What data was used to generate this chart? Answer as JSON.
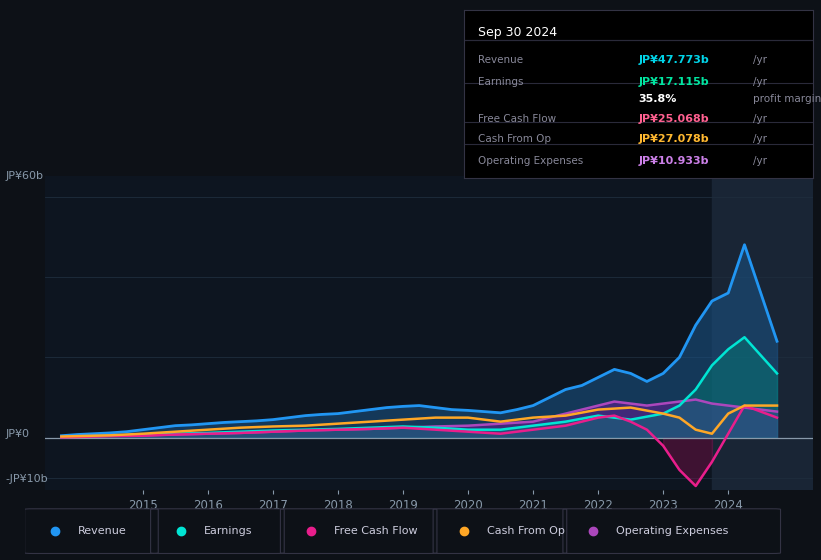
{
  "bg_color": "#0d1117",
  "plot_bg_color": "#0d1520",
  "grid_color": "#1e2d3d",
  "title_label": "Sep 30 2024",
  "ylim": [
    -13,
    65
  ],
  "xlim_start": 2013.5,
  "xlim_end": 2025.3,
  "xticks": [
    2015,
    2016,
    2017,
    2018,
    2019,
    2020,
    2021,
    2022,
    2023,
    2024
  ],
  "highlight_x_start": 2023.75,
  "highlight_x_end": 2025.3,
  "info_rows": [
    {
      "label": "Revenue",
      "value": "JP¥47.773b",
      "suffix": " /yr",
      "value_color": "#00d4e8"
    },
    {
      "label": "Earnings",
      "value": "JP¥17.115b",
      "suffix": " /yr",
      "value_color": "#00e5a0"
    },
    {
      "label": "",
      "value": "35.8%",
      "suffix": " profit margin",
      "value_color": "#ffffff"
    },
    {
      "label": "Free Cash Flow",
      "value": "JP¥25.068b",
      "suffix": " /yr",
      "value_color": "#ff6090"
    },
    {
      "label": "Cash From Op",
      "value": "JP¥27.078b",
      "suffix": " /yr",
      "value_color": "#ffb830"
    },
    {
      "label": "Operating Expenses",
      "value": "JP¥10.933b",
      "suffix": " /yr",
      "value_color": "#cc80e8"
    }
  ],
  "series": {
    "Revenue": {
      "color": "#2196f3",
      "fill_color": "#1a5080",
      "fill_alpha": 0.6,
      "linewidth": 2.0,
      "x": [
        2013.75,
        2014.0,
        2014.25,
        2014.5,
        2014.75,
        2015.0,
        2015.25,
        2015.5,
        2015.75,
        2016.0,
        2016.25,
        2016.5,
        2016.75,
        2017.0,
        2017.25,
        2017.5,
        2017.75,
        2018.0,
        2018.25,
        2018.5,
        2018.75,
        2019.0,
        2019.25,
        2019.5,
        2019.75,
        2020.0,
        2020.25,
        2020.5,
        2020.75,
        2021.0,
        2021.25,
        2021.5,
        2021.75,
        2022.0,
        2022.25,
        2022.5,
        2022.75,
        2023.0,
        2023.25,
        2023.5,
        2023.75,
        2024.0,
        2024.25,
        2024.75
      ],
      "y": [
        0.5,
        0.8,
        1.0,
        1.2,
        1.5,
        2.0,
        2.5,
        3.0,
        3.2,
        3.5,
        3.8,
        4.0,
        4.2,
        4.5,
        5.0,
        5.5,
        5.8,
        6.0,
        6.5,
        7.0,
        7.5,
        7.8,
        8.0,
        7.5,
        7.0,
        6.8,
        6.5,
        6.2,
        7.0,
        8.0,
        10.0,
        12.0,
        13.0,
        15.0,
        17.0,
        16.0,
        14.0,
        16.0,
        20.0,
        28.0,
        34.0,
        36.0,
        48.0,
        24.0
      ]
    },
    "Earnings": {
      "color": "#00e5d4",
      "fill_color": "#00897b",
      "fill_alpha": 0.4,
      "linewidth": 1.8,
      "x": [
        2013.75,
        2014.0,
        2014.5,
        2015.0,
        2015.5,
        2016.0,
        2016.5,
        2017.0,
        2017.5,
        2018.0,
        2018.5,
        2019.0,
        2019.5,
        2020.0,
        2020.5,
        2021.0,
        2021.5,
        2022.0,
        2022.5,
        2023.0,
        2023.25,
        2023.5,
        2023.75,
        2024.0,
        2024.25,
        2024.75
      ],
      "y": [
        0.2,
        0.3,
        0.5,
        0.8,
        1.0,
        1.2,
        1.5,
        1.8,
        2.0,
        2.2,
        2.5,
        2.8,
        2.5,
        2.0,
        2.0,
        3.0,
        4.0,
        5.5,
        4.5,
        6.0,
        8.0,
        12.0,
        18.0,
        22.0,
        25.0,
        16.0
      ]
    },
    "FreeCashFlow": {
      "color": "#e91e8c",
      "fill_color": "#880e4f",
      "fill_alpha": 0.4,
      "linewidth": 1.8,
      "x": [
        2013.75,
        2014.0,
        2014.5,
        2015.0,
        2015.5,
        2016.0,
        2016.5,
        2017.0,
        2017.5,
        2018.0,
        2018.5,
        2019.0,
        2019.5,
        2020.0,
        2020.5,
        2021.0,
        2021.5,
        2022.0,
        2022.25,
        2022.5,
        2022.75,
        2023.0,
        2023.25,
        2023.5,
        2023.75,
        2024.0,
        2024.25,
        2024.75
      ],
      "y": [
        0.1,
        0.2,
        0.4,
        0.5,
        0.8,
        1.0,
        1.2,
        1.5,
        1.8,
        2.0,
        2.2,
        2.5,
        2.0,
        1.5,
        1.0,
        2.0,
        3.0,
        5.0,
        5.5,
        4.0,
        2.0,
        -2.0,
        -8.0,
        -12.0,
        -6.0,
        1.0,
        8.0,
        5.0
      ]
    },
    "CashFromOp": {
      "color": "#ffa726",
      "fill_color": "#e65100",
      "fill_alpha": 0.3,
      "linewidth": 1.8,
      "x": [
        2013.75,
        2014.0,
        2014.5,
        2015.0,
        2015.5,
        2016.0,
        2016.5,
        2017.0,
        2017.5,
        2018.0,
        2018.5,
        2019.0,
        2019.5,
        2020.0,
        2020.5,
        2021.0,
        2021.5,
        2022.0,
        2022.5,
        2023.0,
        2023.25,
        2023.5,
        2023.75,
        2024.0,
        2024.25,
        2024.75
      ],
      "y": [
        0.3,
        0.4,
        0.6,
        1.0,
        1.5,
        2.0,
        2.5,
        2.8,
        3.0,
        3.5,
        4.0,
        4.5,
        5.0,
        5.0,
        4.0,
        5.0,
        5.5,
        7.0,
        7.5,
        6.0,
        5.0,
        2.0,
        1.0,
        6.0,
        8.0,
        8.0
      ]
    },
    "OperatingExpenses": {
      "color": "#ab47bc",
      "fill_color": "#6a1b9a",
      "fill_alpha": 0.5,
      "linewidth": 1.8,
      "x": [
        2013.75,
        2014.0,
        2014.5,
        2015.0,
        2015.5,
        2016.0,
        2016.5,
        2017.0,
        2017.5,
        2018.0,
        2018.5,
        2019.0,
        2019.5,
        2020.0,
        2020.5,
        2021.0,
        2021.25,
        2021.5,
        2021.75,
        2022.0,
        2022.25,
        2022.5,
        2022.75,
        2023.0,
        2023.25,
        2023.5,
        2023.75,
        2024.0,
        2024.25,
        2024.75
      ],
      "y": [
        0.2,
        0.3,
        0.5,
        0.6,
        0.8,
        1.0,
        1.2,
        1.5,
        1.8,
        2.0,
        2.2,
        2.5,
        2.8,
        3.0,
        3.5,
        4.0,
        5.0,
        6.0,
        7.0,
        8.0,
        9.0,
        8.5,
        8.0,
        8.5,
        9.0,
        9.5,
        8.5,
        8.0,
        7.5,
        6.5
      ]
    }
  },
  "legend_items": [
    {
      "label": "Revenue",
      "color": "#2196f3"
    },
    {
      "label": "Earnings",
      "color": "#00e5d4"
    },
    {
      "label": "Free Cash Flow",
      "color": "#e91e8c"
    },
    {
      "label": "Cash From Op",
      "color": "#ffa726"
    },
    {
      "label": "Operating Expenses",
      "color": "#ab47bc"
    }
  ]
}
